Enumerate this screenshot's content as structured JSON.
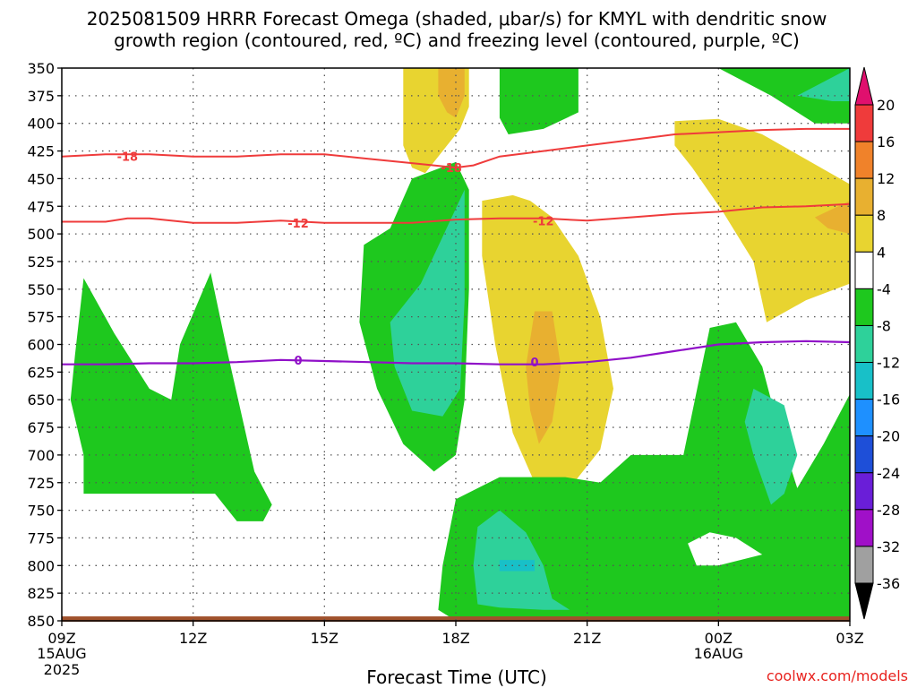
{
  "chart_data": {
    "type": "heatmap",
    "title_line1": "2025081509 HRRR Forecast Omega (shaded, μbar/s) for KMYL with dendritic snow",
    "title_line2": "growth region (contoured, red, ºC) and freezing level (contoured, purple, ºC)",
    "xlabel": "Forecast Time (UTC)",
    "credit": "coolwx.com/models",
    "y_ticks": [
      350,
      375,
      400,
      425,
      450,
      475,
      500,
      525,
      550,
      575,
      600,
      625,
      650,
      675,
      700,
      725,
      750,
      775,
      800,
      825,
      850
    ],
    "x_ticks": [
      {
        "label": "09Z",
        "sub1": "15AUG",
        "sub2": "2025",
        "hour": 0
      },
      {
        "label": "12Z",
        "sub1": "",
        "sub2": "",
        "hour": 3
      },
      {
        "label": "15Z",
        "sub1": "",
        "sub2": "",
        "hour": 6
      },
      {
        "label": "18Z",
        "sub1": "",
        "sub2": "",
        "hour": 9
      },
      {
        "label": "21Z",
        "sub1": "",
        "sub2": "",
        "hour": 12
      },
      {
        "label": "00Z",
        "sub1": "16AUG",
        "sub2": "",
        "hour": 15
      },
      {
        "label": "03Z",
        "sub1": "",
        "sub2": "",
        "hour": 18
      }
    ],
    "x_range_hours": [
      0,
      18
    ],
    "y_range_mb": [
      350,
      850
    ],
    "colorbar": {
      "labels": [
        "20",
        "16",
        "12",
        "8",
        "4",
        "-4",
        "-8",
        "-12",
        "-16",
        "-20",
        "-24",
        "-28",
        "-32",
        "-36"
      ],
      "colors": [
        "#ef3b3b",
        "#f0822a",
        "#e8b030",
        "#e8d430",
        "#ffffff",
        "#1ec81e",
        "#2ed19a",
        "#18c0c8",
        "#1e90ff",
        "#1e4fd8",
        "#6a1ed8",
        "#a010c8",
        "#a0a0a0"
      ],
      "top_color": "#e0106e",
      "bottom_color": "#000000"
    },
    "regions": [
      {
        "level": "4",
        "points": [
          [
            7.8,
            350
          ],
          [
            9.3,
            350
          ],
          [
            9.3,
            385
          ],
          [
            9.1,
            405
          ],
          [
            8.8,
            420
          ],
          [
            8.3,
            445
          ],
          [
            8.0,
            440
          ],
          [
            7.8,
            420
          ]
        ]
      },
      {
        "level": "8",
        "points": [
          [
            8.6,
            350
          ],
          [
            9.2,
            350
          ],
          [
            9.2,
            375
          ],
          [
            9.0,
            395
          ],
          [
            8.8,
            390
          ],
          [
            8.6,
            375
          ]
        ]
      },
      {
        "level": "-4",
        "points": [
          [
            10.0,
            350
          ],
          [
            11.8,
            350
          ],
          [
            11.8,
            390
          ],
          [
            11.0,
            405
          ],
          [
            10.2,
            410
          ],
          [
            10.0,
            395
          ]
        ]
      },
      {
        "level": "-4",
        "points": [
          [
            15.0,
            350
          ],
          [
            18.0,
            350
          ],
          [
            18.0,
            400
          ],
          [
            17.2,
            400
          ],
          [
            16.2,
            375
          ]
        ]
      },
      {
        "level": "-8",
        "points": [
          [
            16.8,
            375
          ],
          [
            18.0,
            350
          ],
          [
            18.0,
            380
          ],
          [
            17.6,
            380
          ]
        ]
      },
      {
        "level": "4",
        "points": [
          [
            14.0,
            398
          ],
          [
            15.0,
            396
          ],
          [
            16.0,
            410
          ],
          [
            18.0,
            455
          ],
          [
            18.0,
            545
          ],
          [
            17.0,
            560
          ],
          [
            16.1,
            580
          ],
          [
            15.8,
            525
          ],
          [
            15.1,
            480
          ],
          [
            14.4,
            440
          ],
          [
            14.0,
            420
          ]
        ]
      },
      {
        "level": "8",
        "points": [
          [
            17.2,
            485
          ],
          [
            18.0,
            470
          ],
          [
            18.0,
            500
          ],
          [
            17.5,
            495
          ]
        ]
      },
      {
        "level": "4",
        "points": [
          [
            10.3,
            465
          ],
          [
            10.7,
            470
          ],
          [
            11.2,
            485
          ],
          [
            11.8,
            520
          ],
          [
            12.3,
            575
          ],
          [
            12.6,
            640
          ],
          [
            12.3,
            695
          ],
          [
            11.5,
            735
          ],
          [
            10.8,
            725
          ],
          [
            10.3,
            680
          ],
          [
            9.9,
            600
          ],
          [
            9.6,
            520
          ],
          [
            9.6,
            470
          ]
        ]
      },
      {
        "level": "8",
        "points": [
          [
            10.8,
            570
          ],
          [
            11.2,
            570
          ],
          [
            11.4,
            620
          ],
          [
            11.2,
            670
          ],
          [
            10.9,
            690
          ],
          [
            10.7,
            660
          ],
          [
            10.6,
            620
          ]
        ]
      },
      {
        "level": "-4",
        "points": [
          [
            8.0,
            450
          ],
          [
            9.0,
            435
          ],
          [
            9.3,
            460
          ],
          [
            9.3,
            550
          ],
          [
            9.2,
            650
          ],
          [
            9.0,
            700
          ],
          [
            8.5,
            715
          ],
          [
            7.8,
            690
          ],
          [
            7.2,
            640
          ],
          [
            6.8,
            580
          ],
          [
            6.9,
            510
          ],
          [
            7.5,
            495
          ]
        ]
      },
      {
        "level": "-8",
        "points": [
          [
            8.2,
            545
          ],
          [
            9.2,
            460
          ],
          [
            9.2,
            560
          ],
          [
            9.1,
            640
          ],
          [
            8.7,
            665
          ],
          [
            8.0,
            660
          ],
          [
            7.6,
            620
          ],
          [
            7.5,
            580
          ]
        ]
      },
      {
        "level": "-4",
        "points": [
          [
            0.5,
            540
          ],
          [
            1.2,
            590
          ],
          [
            2.0,
            640
          ],
          [
            2.5,
            650
          ],
          [
            2.7,
            600
          ],
          [
            3.4,
            535
          ],
          [
            3.8,
            610
          ],
          [
            4.4,
            715
          ],
          [
            4.8,
            745
          ],
          [
            4.6,
            760
          ],
          [
            4.0,
            760
          ],
          [
            3.5,
            735
          ],
          [
            0.5,
            735
          ],
          [
            0.5,
            700
          ],
          [
            0.2,
            650
          ],
          [
            0.3,
            610
          ]
        ]
      },
      {
        "level": "-4",
        "points": [
          [
            9.0,
            740
          ],
          [
            10.0,
            720
          ],
          [
            11.5,
            720
          ],
          [
            12.3,
            725
          ],
          [
            13.0,
            700
          ],
          [
            14.2,
            700
          ],
          [
            14.8,
            585
          ],
          [
            15.4,
            580
          ],
          [
            16.0,
            620
          ],
          [
            16.4,
            680
          ],
          [
            16.8,
            730
          ],
          [
            17.4,
            690
          ],
          [
            18.0,
            645
          ],
          [
            18.0,
            850
          ],
          [
            9.0,
            850
          ],
          [
            8.6,
            840
          ],
          [
            8.7,
            800
          ]
        ]
      },
      {
        "level": "-8",
        "points": [
          [
            9.5,
            765
          ],
          [
            10.0,
            750
          ],
          [
            10.6,
            770
          ],
          [
            11.0,
            800
          ],
          [
            11.2,
            830
          ],
          [
            11.6,
            840
          ],
          [
            11.0,
            840
          ],
          [
            10.0,
            838
          ],
          [
            9.5,
            835
          ],
          [
            9.4,
            800
          ]
        ]
      },
      {
        "level": "-12",
        "points": [
          [
            10.0,
            795
          ],
          [
            10.8,
            795
          ],
          [
            10.8,
            805
          ],
          [
            10.0,
            805
          ]
        ]
      },
      {
        "level": "-8",
        "points": [
          [
            15.8,
            640
          ],
          [
            16.5,
            655
          ],
          [
            16.8,
            700
          ],
          [
            16.5,
            735
          ],
          [
            16.2,
            745
          ],
          [
            15.8,
            700
          ],
          [
            15.6,
            670
          ]
        ]
      },
      {
        "level": "-4",
        "points": [
          [
            15.0,
            790
          ],
          [
            15.8,
            790
          ],
          [
            16.5,
            795
          ],
          [
            16.5,
            800
          ],
          [
            15.0,
            800
          ]
        ]
      }
    ],
    "white_holes": [
      {
        "points": [
          [
            14.3,
            780
          ],
          [
            14.8,
            770
          ],
          [
            15.4,
            775
          ],
          [
            16.0,
            790
          ],
          [
            15.0,
            800
          ],
          [
            14.5,
            800
          ]
        ]
      }
    ],
    "dgz_contours": [
      {
        "label": "-18",
        "label_at": [
          1.5,
          430
        ],
        "points": [
          [
            0,
            430
          ],
          [
            1,
            428
          ],
          [
            2,
            428
          ],
          [
            3,
            430
          ],
          [
            4,
            430
          ],
          [
            5,
            428
          ],
          [
            6,
            428
          ],
          [
            7,
            432
          ],
          [
            8,
            436
          ],
          [
            9,
            440
          ],
          [
            9.4,
            438
          ],
          [
            10,
            430
          ],
          [
            11,
            425
          ],
          [
            12,
            420
          ],
          [
            13,
            415
          ],
          [
            14,
            410
          ],
          [
            15,
            408
          ],
          [
            16,
            406
          ],
          [
            17,
            405
          ],
          [
            18,
            405
          ]
        ]
      },
      {
        "label": "-18",
        "label_at": [
          8.9,
          440
        ],
        "points": []
      },
      {
        "label": "-12",
        "label_at": [
          5.4,
          490
        ],
        "points": [
          [
            0,
            489
          ],
          [
            1,
            489
          ],
          [
            1.5,
            486
          ],
          [
            2,
            486
          ],
          [
            3,
            490
          ],
          [
            4,
            490
          ],
          [
            5,
            488
          ],
          [
            6,
            490
          ],
          [
            7,
            490
          ],
          [
            8,
            490
          ],
          [
            9,
            487
          ],
          [
            10,
            486
          ],
          [
            11,
            486
          ],
          [
            12,
            488
          ],
          [
            13,
            485
          ],
          [
            14,
            482
          ],
          [
            15,
            480
          ],
          [
            16,
            476
          ],
          [
            17,
            475
          ],
          [
            18,
            473
          ]
        ]
      },
      {
        "label": "-12",
        "label_at": [
          11.0,
          488
        ],
        "points": []
      }
    ],
    "freezing_level": {
      "label": "0",
      "label_at": [
        [
          5.4,
          614
        ],
        [
          10.8,
          616
        ]
      ],
      "points": [
        [
          0,
          618
        ],
        [
          1,
          618
        ],
        [
          2,
          617
        ],
        [
          3,
          617
        ],
        [
          4,
          616
        ],
        [
          5,
          614
        ],
        [
          6,
          615
        ],
        [
          7,
          616
        ],
        [
          8,
          617
        ],
        [
          9,
          617
        ],
        [
          10,
          618
        ],
        [
          11,
          618
        ],
        [
          12,
          616
        ],
        [
          13,
          612
        ],
        [
          14,
          606
        ],
        [
          15,
          600
        ],
        [
          16,
          598
        ],
        [
          17,
          597
        ],
        [
          18,
          598
        ]
      ]
    },
    "ground_band": {
      "from_mb": 846,
      "to_mb": 850,
      "color": "#a0522d"
    },
    "level_colors": {
      "4": "#e8d430",
      "8": "#e8b030",
      "12": "#f0822a",
      "16": "#ef3b3b",
      "-4": "#1ec81e",
      "-8": "#2ed19a",
      "-12": "#18c0c8"
    },
    "contour_colors": {
      "dgz": "#ef3b3b",
      "freezing": "#9010c8"
    }
  }
}
